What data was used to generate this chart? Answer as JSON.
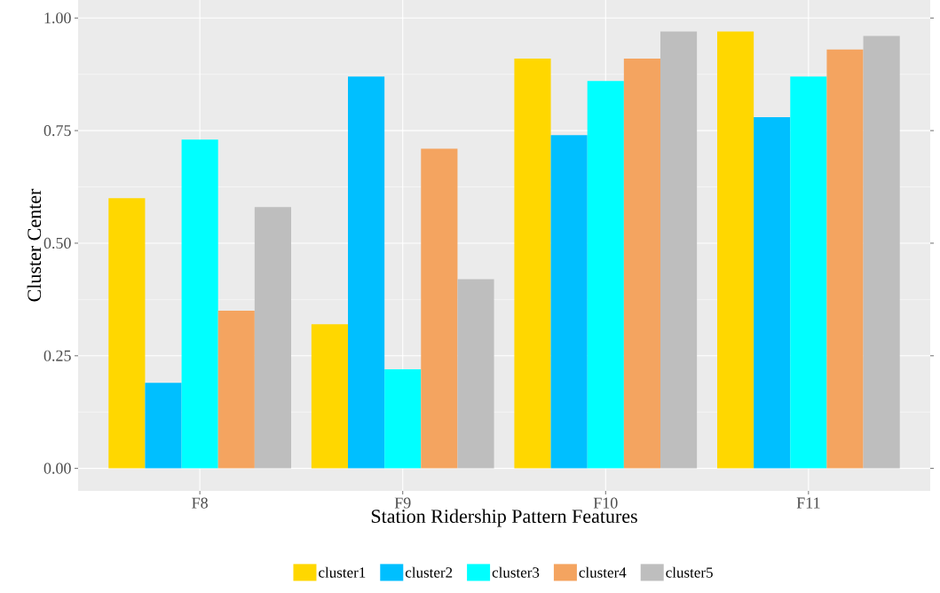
{
  "chart_data": {
    "type": "bar",
    "xlabel": "Station Ridership Pattern Features",
    "ylabel": "Cluster Center",
    "categories": [
      "F8",
      "F9",
      "F10",
      "F11"
    ],
    "series": [
      {
        "name": "cluster1",
        "color": "#ffd700",
        "values": [
          0.6,
          0.32,
          0.91,
          0.97
        ]
      },
      {
        "name": "cluster2",
        "color": "#00bfff",
        "values": [
          0.19,
          0.87,
          0.74,
          0.78
        ]
      },
      {
        "name": "cluster3",
        "color": "#00ffff",
        "values": [
          0.73,
          0.22,
          0.86,
          0.87
        ]
      },
      {
        "name": "cluster4",
        "color": "#f4a460",
        "values": [
          0.35,
          0.71,
          0.91,
          0.93
        ]
      },
      {
        "name": "cluster5",
        "color": "#bebebe",
        "values": [
          0.58,
          0.42,
          0.97,
          0.96
        ]
      }
    ],
    "ylim": [
      -0.05,
      1.04
    ],
    "yticks": [
      {
        "value": 0,
        "label": "0.00"
      },
      {
        "value": 0.25,
        "label": "0.25"
      },
      {
        "value": 0.5,
        "label": "0.50"
      },
      {
        "value": 0.75,
        "label": "0.75"
      },
      {
        "value": 1,
        "label": "1.00"
      }
    ],
    "grid": true,
    "legend": "bottom"
  }
}
